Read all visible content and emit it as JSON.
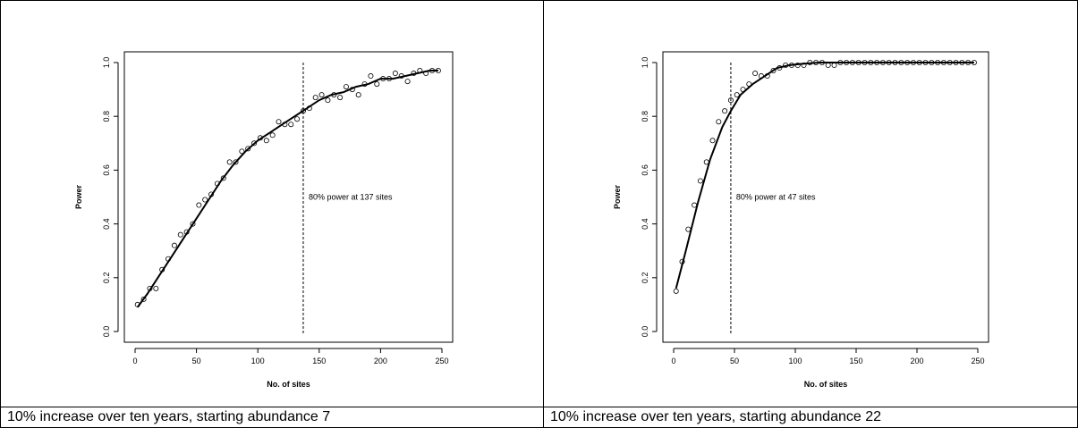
{
  "panels": [
    {
      "caption": "10% increase over ten years, starting abundance 7",
      "chart": {
        "type": "scatter",
        "xlabel": "No. of sites",
        "ylabel": "Power",
        "xlim": [
          0,
          250
        ],
        "ylim": [
          0,
          1.0
        ],
        "x_ticks": [
          "0",
          "50",
          "100",
          "150",
          "200",
          "250"
        ],
        "y_ticks": [
          "0.0",
          "0.2",
          "0.4",
          "0.6",
          "0.8",
          "1.0"
        ],
        "annotation": "80% power at 137 sites",
        "threshold_x": 137,
        "points": [
          [
            2,
            0.1
          ],
          [
            7,
            0.12
          ],
          [
            12,
            0.16
          ],
          [
            17,
            0.16
          ],
          [
            22,
            0.23
          ],
          [
            27,
            0.27
          ],
          [
            32,
            0.32
          ],
          [
            37,
            0.36
          ],
          [
            42,
            0.37
          ],
          [
            47,
            0.4
          ],
          [
            52,
            0.47
          ],
          [
            57,
            0.49
          ],
          [
            62,
            0.51
          ],
          [
            67,
            0.55
          ],
          [
            72,
            0.57
          ],
          [
            77,
            0.63
          ],
          [
            82,
            0.63
          ],
          [
            87,
            0.67
          ],
          [
            92,
            0.68
          ],
          [
            97,
            0.7
          ],
          [
            102,
            0.72
          ],
          [
            107,
            0.71
          ],
          [
            112,
            0.73
          ],
          [
            117,
            0.78
          ],
          [
            122,
            0.77
          ],
          [
            127,
            0.77
          ],
          [
            132,
            0.79
          ],
          [
            137,
            0.82
          ],
          [
            142,
            0.83
          ],
          [
            147,
            0.87
          ],
          [
            152,
            0.88
          ],
          [
            157,
            0.86
          ],
          [
            162,
            0.88
          ],
          [
            167,
            0.87
          ],
          [
            172,
            0.91
          ],
          [
            177,
            0.9
          ],
          [
            182,
            0.88
          ],
          [
            187,
            0.92
          ],
          [
            192,
            0.95
          ],
          [
            197,
            0.92
          ],
          [
            202,
            0.94
          ],
          [
            207,
            0.94
          ],
          [
            212,
            0.96
          ],
          [
            217,
            0.95
          ],
          [
            222,
            0.93
          ],
          [
            227,
            0.96
          ],
          [
            232,
            0.97
          ],
          [
            237,
            0.96
          ],
          [
            242,
            0.97
          ],
          [
            247,
            0.97
          ]
        ],
        "fit": [
          [
            2,
            0.09
          ],
          [
            10,
            0.14
          ],
          [
            20,
            0.21
          ],
          [
            30,
            0.28
          ],
          [
            40,
            0.35
          ],
          [
            50,
            0.42
          ],
          [
            60,
            0.49
          ],
          [
            70,
            0.56
          ],
          [
            80,
            0.62
          ],
          [
            90,
            0.67
          ],
          [
            100,
            0.71
          ],
          [
            110,
            0.74
          ],
          [
            120,
            0.77
          ],
          [
            130,
            0.8
          ],
          [
            140,
            0.83
          ],
          [
            150,
            0.86
          ],
          [
            160,
            0.88
          ],
          [
            170,
            0.89
          ],
          [
            180,
            0.91
          ],
          [
            190,
            0.92
          ],
          [
            200,
            0.94
          ],
          [
            210,
            0.94
          ],
          [
            220,
            0.95
          ],
          [
            230,
            0.96
          ],
          [
            240,
            0.97
          ],
          [
            247,
            0.97
          ]
        ]
      }
    },
    {
      "caption": "10% increase over ten years, starting abundance 22",
      "chart": {
        "type": "scatter",
        "xlabel": "No. of sites",
        "ylabel": "Power",
        "xlim": [
          0,
          250
        ],
        "ylim": [
          0,
          1.0
        ],
        "x_ticks": [
          "0",
          "50",
          "100",
          "150",
          "200",
          "250"
        ],
        "y_ticks": [
          "0.0",
          "0.2",
          "0.4",
          "0.6",
          "0.8",
          "1.0"
        ],
        "annotation": "80% power at 47 sites",
        "threshold_x": 47,
        "points": [
          [
            2,
            0.15
          ],
          [
            7,
            0.26
          ],
          [
            12,
            0.38
          ],
          [
            17,
            0.47
          ],
          [
            22,
            0.56
          ],
          [
            27,
            0.63
          ],
          [
            32,
            0.71
          ],
          [
            37,
            0.78
          ],
          [
            42,
            0.82
          ],
          [
            47,
            0.86
          ],
          [
            52,
            0.88
          ],
          [
            57,
            0.9
          ],
          [
            62,
            0.92
          ],
          [
            67,
            0.96
          ],
          [
            72,
            0.95
          ],
          [
            77,
            0.95
          ],
          [
            82,
            0.97
          ],
          [
            87,
            0.98
          ],
          [
            92,
            0.99
          ],
          [
            97,
            0.99
          ],
          [
            102,
            0.99
          ],
          [
            107,
            0.99
          ],
          [
            112,
            1.0
          ],
          [
            117,
            1.0
          ],
          [
            122,
            1.0
          ],
          [
            127,
            0.99
          ],
          [
            132,
            0.99
          ],
          [
            137,
            1.0
          ],
          [
            142,
            1.0
          ],
          [
            147,
            1.0
          ],
          [
            152,
            1.0
          ],
          [
            157,
            1.0
          ],
          [
            162,
            1.0
          ],
          [
            167,
            1.0
          ],
          [
            172,
            1.0
          ],
          [
            177,
            1.0
          ],
          [
            182,
            1.0
          ],
          [
            187,
            1.0
          ],
          [
            192,
            1.0
          ],
          [
            197,
            1.0
          ],
          [
            202,
            1.0
          ],
          [
            207,
            1.0
          ],
          [
            212,
            1.0
          ],
          [
            217,
            1.0
          ],
          [
            222,
            1.0
          ],
          [
            227,
            1.0
          ],
          [
            232,
            1.0
          ],
          [
            237,
            1.0
          ],
          [
            242,
            1.0
          ],
          [
            247,
            1.0
          ]
        ],
        "fit": [
          [
            2,
            0.16
          ],
          [
            10,
            0.3
          ],
          [
            20,
            0.48
          ],
          [
            30,
            0.64
          ],
          [
            40,
            0.76
          ],
          [
            47,
            0.82
          ],
          [
            55,
            0.88
          ],
          [
            65,
            0.92
          ],
          [
            75,
            0.95
          ],
          [
            85,
            0.98
          ],
          [
            95,
            0.99
          ],
          [
            105,
            0.995
          ],
          [
            120,
            1.0
          ],
          [
            150,
            1.0
          ],
          [
            200,
            1.0
          ],
          [
            247,
            1.0
          ]
        ]
      }
    }
  ]
}
